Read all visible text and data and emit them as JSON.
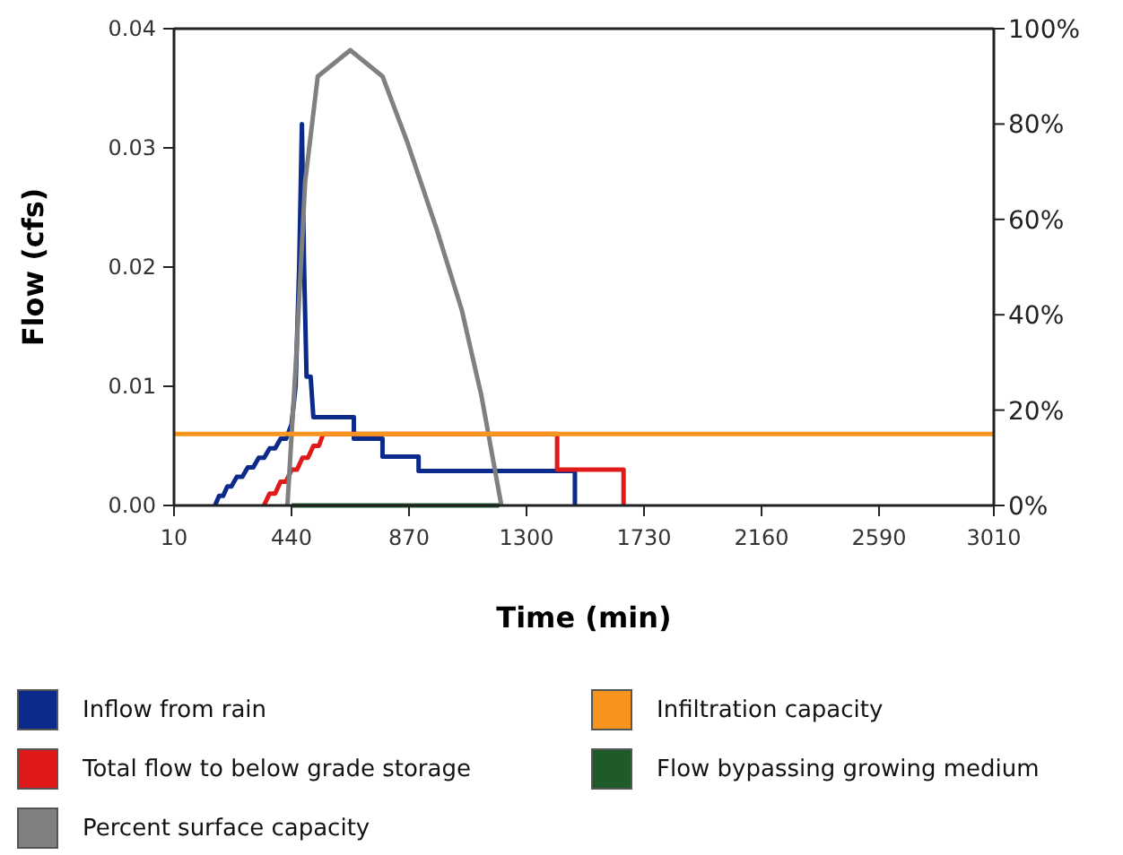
{
  "chart_data": {
    "type": "line",
    "xlabel": "Time (min)",
    "ylabel": "Flow (cfs)",
    "xlim": [
      10,
      3010
    ],
    "xticks": [
      10,
      440,
      870,
      1300,
      1730,
      2160,
      2590,
      3010
    ],
    "ylim": [
      0,
      0.04
    ],
    "yticks": [
      {
        "value": 0,
        "label": "0.00"
      },
      0.01,
      0.02,
      0.03,
      0.04
    ],
    "y2lim": [
      0,
      100
    ],
    "y2ticks": [
      {
        "value": 0,
        "label": "0%"
      },
      {
        "value": 20,
        "label": "20%"
      },
      {
        "value": 40,
        "label": "40%"
      },
      {
        "value": 60,
        "label": "60%"
      },
      {
        "value": 80,
        "label": "80%"
      },
      {
        "value": 100,
        "label": "100%"
      }
    ],
    "grid": false,
    "legend": "bottom",
    "marker": "none",
    "line_style": "solid",
    "series": [
      {
        "name": "Inflow from rain",
        "color": "#0b2a8a",
        "x": [
          160,
          175,
          190,
          205,
          220,
          240,
          260,
          280,
          300,
          320,
          340,
          360,
          380,
          400,
          420,
          440,
          455,
          468,
          478,
          486,
          495,
          510,
          520,
          668,
          668,
          773,
          773,
          905,
          905,
          1477,
          1477
        ],
        "values": [
          0,
          0.0008,
          0.0008,
          0.0016,
          0.0016,
          0.0024,
          0.0024,
          0.0032,
          0.0032,
          0.004,
          0.004,
          0.0048,
          0.0048,
          0.0056,
          0.0056,
          0.0068,
          0.01,
          0.02,
          0.032,
          0.02,
          0.0108,
          0.0108,
          0.0074,
          0.0074,
          0.0056,
          0.0056,
          0.0041,
          0.0041,
          0.0029,
          0.0029,
          0
        ]
      },
      {
        "name": "Total flow to below grade storage",
        "color": "#e01a1a",
        "x": [
          339,
          360,
          380,
          400,
          420,
          440,
          460,
          480,
          500,
          520,
          540,
          556,
          1412,
          1412,
          1655,
          1655
        ],
        "values": [
          0,
          0.001,
          0.001,
          0.002,
          0.002,
          0.003,
          0.003,
          0.004,
          0.004,
          0.005,
          0.005,
          0.006,
          0.006,
          0.003,
          0.003,
          0
        ]
      },
      {
        "name": "Percent surface capacity",
        "color": "#808080",
        "axis": "y2",
        "x": [
          425,
          457,
          490,
          536,
          655,
          773,
          865,
          971,
          1063,
          1135,
          1208
        ],
        "values": [
          0,
          31,
          68,
          90,
          95.5,
          90,
          76,
          58,
          41,
          23,
          0
        ]
      },
      {
        "name": "Infiltration capacity",
        "color": "#f7941d",
        "x": [
          10,
          3010
        ],
        "values": [
          0.006,
          0.006
        ]
      },
      {
        "name": "Flow bypassing growing medium",
        "color": "#1e5a2a",
        "x": [
          440,
          1200
        ],
        "values": [
          0,
          0
        ]
      }
    ]
  }
}
